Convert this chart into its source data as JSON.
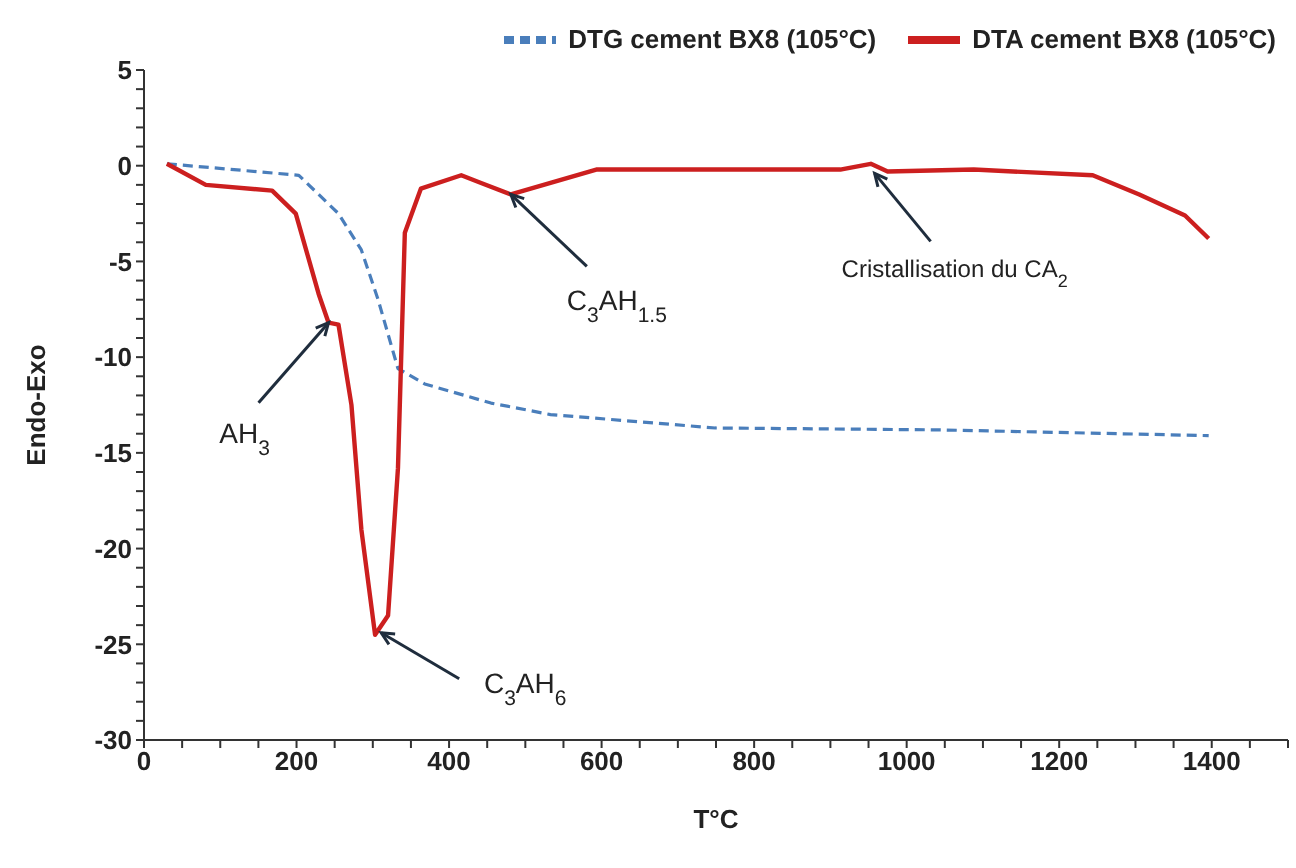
{
  "chart_data": {
    "type": "line",
    "xlabel": "T°C",
    "ylabel": "Endo-Exo",
    "xlim": [
      0,
      1500
    ],
    "xticks": [
      0,
      {
        "value": 50,
        "label": null
      },
      {
        "value": 100,
        "label": null
      },
      {
        "value": 150,
        "label": null
      },
      200,
      {
        "value": 250,
        "label": null
      },
      {
        "value": 300,
        "label": null
      },
      {
        "value": 350,
        "label": null
      },
      400,
      {
        "value": 450,
        "label": null
      },
      {
        "value": 500,
        "label": null
      },
      {
        "value": 550,
        "label": null
      },
      600,
      {
        "value": 650,
        "label": null
      },
      {
        "value": 700,
        "label": null
      },
      {
        "value": 750,
        "label": null
      },
      800,
      {
        "value": 850,
        "label": null
      },
      {
        "value": 900,
        "label": null
      },
      {
        "value": 950,
        "label": null
      },
      1000,
      {
        "value": 1050,
        "label": null
      },
      {
        "value": 1100,
        "label": null
      },
      {
        "value": 1150,
        "label": null
      },
      1200,
      {
        "value": 1250,
        "label": null
      },
      {
        "value": 1300,
        "label": null
      },
      {
        "value": 1350,
        "label": null
      },
      1400,
      {
        "value": 1450,
        "label": null
      },
      {
        "value": 1500,
        "label": null
      }
    ],
    "ylim": [
      -30,
      5
    ],
    "yticks": [
      -30,
      {
        "value": -29,
        "label": null
      },
      {
        "value": -28,
        "label": null
      },
      {
        "value": -27,
        "label": null
      },
      {
        "value": -26,
        "label": null
      },
      -25,
      {
        "value": -24,
        "label": null
      },
      {
        "value": -23,
        "label": null
      },
      {
        "value": -22,
        "label": null
      },
      {
        "value": -21,
        "label": null
      },
      -20,
      {
        "value": -19,
        "label": null
      },
      {
        "value": -18,
        "label": null
      },
      {
        "value": -17,
        "label": null
      },
      {
        "value": -16,
        "label": null
      },
      -15,
      {
        "value": -14,
        "label": null
      },
      {
        "value": -13,
        "label": null
      },
      {
        "value": -12,
        "label": null
      },
      {
        "value": -11,
        "label": null
      },
      -10,
      {
        "value": -9,
        "label": null
      },
      {
        "value": -8,
        "label": null
      },
      {
        "value": -7,
        "label": null
      },
      {
        "value": -6,
        "label": null
      },
      -5,
      {
        "value": -4,
        "label": null
      },
      {
        "value": -3,
        "label": null
      },
      {
        "value": -2,
        "label": null
      },
      {
        "value": -1,
        "label": null
      },
      0,
      {
        "value": 1,
        "label": null
      },
      {
        "value": 2,
        "label": null
      },
      {
        "value": 3,
        "label": null
      },
      {
        "value": 4,
        "label": null
      },
      5
    ],
    "grid": false,
    "legend": "top right",
    "marker": "none",
    "series": [
      {
        "name": "DTG cement BX8 (105°C)",
        "color": "#4a7ebb",
        "line_style": "dashed",
        "x": [
          30,
          203,
          255,
          285,
          307,
          333,
          368,
          455,
          533,
          749,
          1044,
          1396
        ],
        "values": [
          0.1,
          -0.5,
          -2.5,
          -4.4,
          -7.0,
          -10.6,
          -11.4,
          -12.4,
          -13.0,
          -13.7,
          -13.8,
          -14.1
        ]
      },
      {
        "name": "DTA cement BX8 (105°C)",
        "color": "#cc1f1f",
        "line_style": "solid",
        "x": [
          30,
          81,
          168,
          199,
          229,
          242,
          255,
          272,
          285,
          303,
          320,
          333,
          342,
          363,
          416,
          442,
          481,
          533,
          593,
          749,
          913,
          953,
          975,
          1088,
          1244,
          1305,
          1365,
          1396
        ],
        "values": [
          0.1,
          -1.0,
          -1.3,
          -2.5,
          -6.7,
          -8.2,
          -8.3,
          -12.5,
          -19,
          -24.5,
          -23.5,
          -15.8,
          -3.5,
          -1.2,
          -0.5,
          -0.9,
          -1.5,
          -0.9,
          -0.2,
          -0.2,
          -0.2,
          0.1,
          -0.3,
          -0.2,
          -0.5,
          -1.5,
          -2.6,
          -3.8
        ]
      }
    ],
    "annotations": [
      {
        "text": "AH$_{3}$",
        "x": 242,
        "y": -8.2
      },
      {
        "text": "C$_{3}$AH$_{6}$",
        "x": 311,
        "y": -24.4
      },
      {
        "text": "C$_{3}$AH$_{1.5}$",
        "x": 481,
        "y": -1.5
      },
      {
        "text": "Cristallisation du CA$_{2}$",
        "x": 958,
        "y": -0.4
      }
    ]
  }
}
